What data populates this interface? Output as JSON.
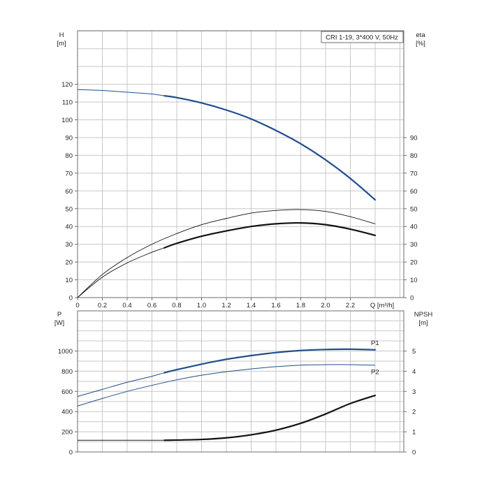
{
  "chart_data": [
    {
      "type": "line",
      "legend_text": "CRI 1-19, 3*400 V, 50Hz",
      "legend_position": "top-right",
      "grid": true,
      "xlabel": "Q [m³/h]",
      "xlim": [
        0,
        2.6
      ],
      "x_ticks": [
        "0",
        "0.2",
        "0.4",
        "0.6",
        "0.8",
        "1.0",
        "1.2",
        "1.4",
        "1.6",
        "1.8",
        "2.0",
        "2.2"
      ],
      "y_left_label_top": "H",
      "y_left_label_unit": "[m]",
      "y_left_lim": [
        0,
        150
      ],
      "y_left_ticks": [
        "0",
        "10",
        "20",
        "30",
        "40",
        "50",
        "60",
        "70",
        "80",
        "90",
        "100",
        "110",
        "120"
      ],
      "y_right_label_top": "eta",
      "y_right_label_unit": "[%]",
      "y_right_lim": [
        0,
        150
      ],
      "y_right_ticks": [
        "0",
        "10",
        "20",
        "30",
        "40",
        "50",
        "60",
        "70",
        "80",
        "90"
      ],
      "series": [
        {
          "axis": "left",
          "color": "#1f4e8c",
          "x": [
            0,
            0.2,
            0.4,
            0.6,
            0.7,
            0.8,
            1.0,
            1.2,
            1.4,
            1.6,
            1.8,
            2.0,
            2.2,
            2.4
          ],
          "y": [
            117,
            116.5,
            115.5,
            114.5,
            113.5,
            112.5,
            109.5,
            105.5,
            100.5,
            94,
            86.5,
            77.5,
            67,
            55
          ]
        },
        {
          "axis": "right",
          "color": "#111111",
          "x": [
            0,
            0.2,
            0.4,
            0.6,
            0.8,
            1.0,
            1.2,
            1.4,
            1.6,
            1.8,
            2.0,
            2.2,
            2.4
          ],
          "y": [
            0,
            13,
            22.5,
            30,
            36,
            41,
            44.5,
            47.5,
            49,
            49.5,
            48.5,
            45.5,
            41.5
          ]
        },
        {
          "axis": "right",
          "color": "#111111",
          "x": [
            0,
            0.2,
            0.4,
            0.6,
            0.7,
            0.8,
            1.0,
            1.2,
            1.4,
            1.6,
            1.8,
            2.0,
            2.2,
            2.4
          ],
          "y": [
            0,
            11.5,
            19.5,
            25.5,
            28,
            30.5,
            34.5,
            37.5,
            40,
            41.5,
            42,
            41,
            38.5,
            35
          ]
        }
      ]
    },
    {
      "type": "line",
      "grid": true,
      "xlim": [
        0,
        2.6
      ],
      "y_left_label_top": "P",
      "y_left_label_unit": "[W]",
      "y_left_lim": [
        0,
        1200
      ],
      "y_left_ticks": [
        "0",
        "200",
        "400",
        "600",
        "800",
        "1000"
      ],
      "y_right_label_top": "NPSH",
      "y_right_label_unit": "[m]",
      "y_right_lim": [
        0,
        6
      ],
      "y_right_ticks": [
        "0",
        "1",
        "2",
        "3",
        "4",
        "5"
      ],
      "series": [
        {
          "name": "P1",
          "axis": "left",
          "color": "#1f4e8c",
          "x": [
            0,
            0.2,
            0.4,
            0.6,
            0.7,
            0.8,
            1.0,
            1.2,
            1.4,
            1.6,
            1.8,
            2.0,
            2.2,
            2.4
          ],
          "y": [
            550,
            620,
            690,
            750,
            785,
            815,
            870,
            918,
            955,
            985,
            1005,
            1015,
            1018,
            1012
          ]
        },
        {
          "name": "P2",
          "axis": "left",
          "color": "#1f4e8c",
          "x": [
            0,
            0.2,
            0.4,
            0.6,
            0.8,
            1.0,
            1.2,
            1.4,
            1.6,
            1.8,
            2.0,
            2.2,
            2.4
          ],
          "y": [
            455,
            530,
            600,
            660,
            715,
            760,
            795,
            823,
            845,
            860,
            865,
            865,
            860
          ]
        },
        {
          "axis": "right",
          "color": "#111111",
          "x": [
            0,
            0.2,
            0.4,
            0.6,
            0.7,
            0.8,
            1.0,
            1.2,
            1.4,
            1.6,
            1.8,
            2.0,
            2.2,
            2.4
          ],
          "y": [
            0.58,
            0.58,
            0.58,
            0.58,
            0.58,
            0.59,
            0.62,
            0.7,
            0.85,
            1.08,
            1.42,
            1.88,
            2.4,
            2.8
          ]
        }
      ]
    }
  ]
}
